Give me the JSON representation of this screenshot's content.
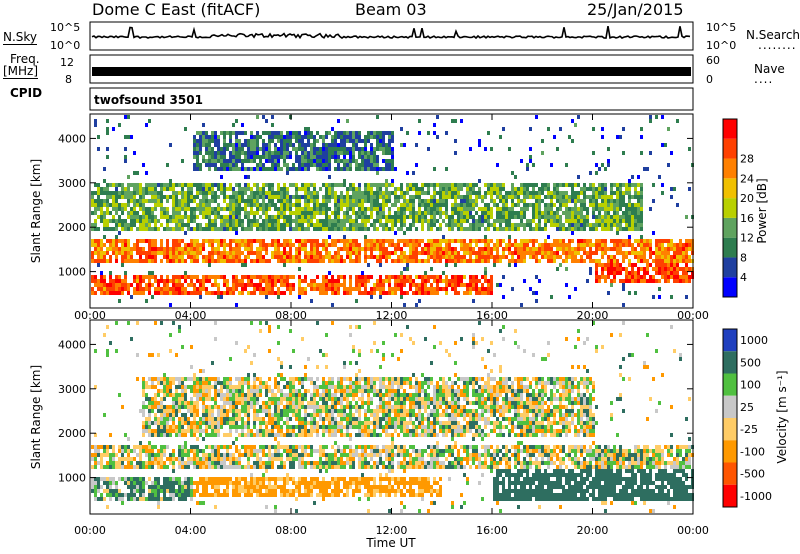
{
  "header": {
    "station": "Dome C East (fitACF)",
    "beam": "Beam 03",
    "date": "25/Jan/2015"
  },
  "top_panels": {
    "nsky_label": "N.Sky",
    "nsky_ticks": [
      "10^5",
      "10^0"
    ],
    "nsearch_label": "N.Search",
    "nsearch_dots": "........",
    "freq_label": "Freq.",
    "freq_unit": "[MHz]",
    "freq_ticks": [
      "12",
      "8"
    ],
    "nave_label": "Nave",
    "nave_dots": "....",
    "nave_ticks": [
      "60",
      "0"
    ],
    "cpid_label": "CPID",
    "cpid_value": "twofsound 3501"
  },
  "colors": {
    "white_bg": "#ffffff",
    "axis": "#000000",
    "power_scale": [
      "#0000ff",
      "#1f3fa0",
      "#2e7d4f",
      "#5fa35f",
      "#b8d000",
      "#f0c000",
      "#ff8000",
      "#ff4000",
      "#ff0000"
    ],
    "velocity_scale": [
      "#1f3fbf",
      "#2e6e60",
      "#50c040",
      "#c8c8c8",
      "#ffcc66",
      "#ff9900",
      "#ff5500",
      "#ff0000"
    ]
  },
  "chart_data": [
    {
      "type": "heatmap",
      "panel": "power",
      "xlabel": "",
      "ylabel": "Slant Range [km]",
      "x_ticks": [
        "00:00",
        "04:00",
        "08:00",
        "12:00",
        "16:00",
        "20:00",
        "00:00"
      ],
      "xlim_hours": [
        0,
        24
      ],
      "y_ticks": [
        1000,
        2000,
        3000,
        4000
      ],
      "ylim": [
        180,
        4550
      ],
      "colorbar_label": "Power [dB]",
      "colorbar_ticks": [
        4,
        8,
        12,
        16,
        20,
        24,
        28
      ],
      "clim": [
        0,
        32
      ],
      "bands": [
        {
          "range_km": [
            1200,
            1750
          ],
          "value_db": 24,
          "start_hour": 0,
          "end_hour": 24
        },
        {
          "range_km": [
            500,
            1000
          ],
          "value_db": 26,
          "start_hour": 0,
          "end_hour": 16
        },
        {
          "range_km": [
            800,
            1400
          ],
          "value_db": 27,
          "start_hour": 20,
          "end_hour": 24
        },
        {
          "range_km": [
            2000,
            3000
          ],
          "value_db": 12,
          "start_hour": 0,
          "end_hour": 22
        },
        {
          "range_km": [
            3300,
            4200
          ],
          "value_db": 8,
          "start_hour": 4,
          "end_hour": 12
        }
      ]
    },
    {
      "type": "heatmap",
      "panel": "velocity",
      "xlabel": "Time UT",
      "ylabel": "Slant Range [km]",
      "x_ticks": [
        "00:00",
        "04:00",
        "08:00",
        "12:00",
        "16:00",
        "20:00",
        "00:00"
      ],
      "xlim_hours": [
        0,
        24
      ],
      "y_ticks": [
        1000,
        2000,
        3000,
        4000
      ],
      "ylim": [
        180,
        4550
      ],
      "colorbar_label": "Velocity [m s⁻¹]",
      "colorbar_ticks": [
        "1000",
        "500",
        "100",
        "25",
        "-25",
        "-100",
        "-500",
        "-1000"
      ],
      "bands": [
        {
          "range_km": [
            1200,
            1800
          ],
          "value_ms": 0,
          "start_hour": 0,
          "end_hour": 24
        },
        {
          "range_km": [
            600,
            1100
          ],
          "value_ms": -200,
          "start_hour": 4,
          "end_hour": 14
        },
        {
          "range_km": [
            500,
            1100
          ],
          "value_ms": 100,
          "start_hour": 0,
          "end_hour": 4
        },
        {
          "range_km": [
            500,
            1800
          ],
          "value_ms": 300,
          "start_hour": 16,
          "end_hour": 24
        },
        {
          "range_km": [
            2000,
            3300
          ],
          "value_ms": 0,
          "start_hour": 2,
          "end_hour": 20
        }
      ]
    }
  ]
}
